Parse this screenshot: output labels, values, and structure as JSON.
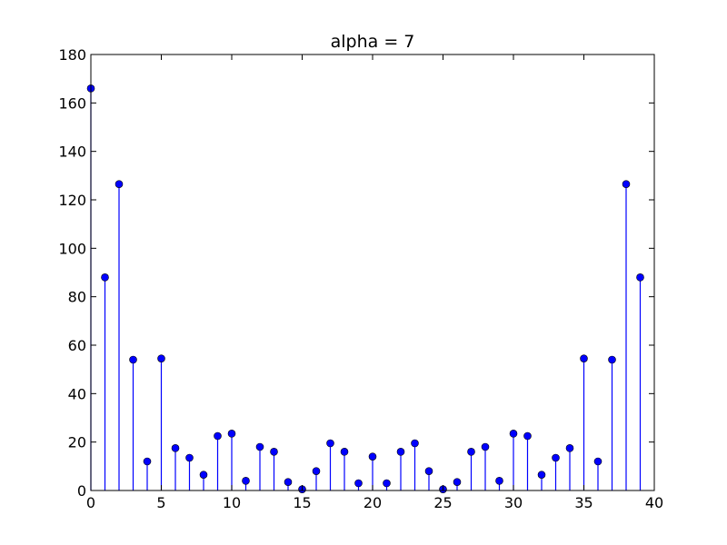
{
  "chart_data": {
    "type": "stem",
    "title": "alpha = 7",
    "xlabel": "",
    "ylabel": "",
    "xlim": [
      0,
      40
    ],
    "ylim": [
      0,
      180
    ],
    "xticks": [
      0,
      5,
      10,
      15,
      20,
      25,
      30,
      35,
      40
    ],
    "yticks": [
      0,
      20,
      40,
      60,
      80,
      100,
      120,
      140,
      160,
      180
    ],
    "grid": false,
    "color": "#0000ff",
    "x": [
      0,
      1,
      2,
      3,
      4,
      5,
      6,
      7,
      8,
      9,
      10,
      11,
      12,
      13,
      14,
      15,
      16,
      17,
      18,
      19,
      20,
      21,
      22,
      23,
      24,
      25,
      26,
      27,
      28,
      29,
      30,
      31,
      32,
      33,
      34,
      35,
      36,
      37,
      38,
      39
    ],
    "values": [
      166,
      88,
      126.5,
      54,
      12,
      54.5,
      17.5,
      13.5,
      6.5,
      22.5,
      23.5,
      4,
      18,
      16,
      3.5,
      0.5,
      8,
      19.5,
      16,
      3,
      14,
      3,
      16,
      19.5,
      8,
      0.5,
      3.5,
      16,
      18,
      4,
      23.5,
      22.5,
      6.5,
      13.5,
      17.5,
      54.5,
      12,
      54,
      126.5,
      88
    ]
  }
}
